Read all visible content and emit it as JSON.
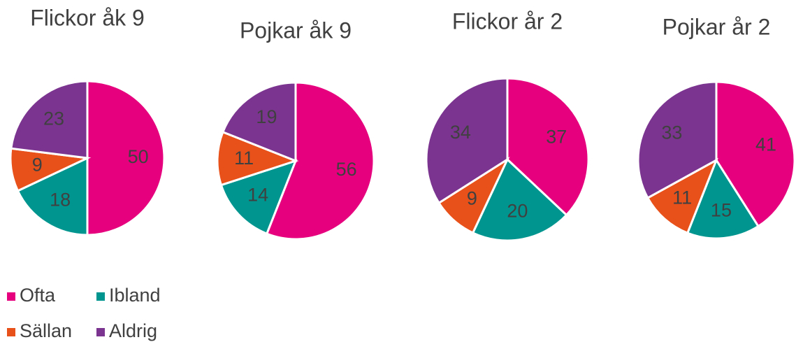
{
  "chart_data": [
    {
      "type": "pie",
      "title": "Flickor åk 9",
      "values": [
        50,
        18,
        9,
        23
      ]
    },
    {
      "type": "pie",
      "title": "Pojkar åk 9",
      "values": [
        56,
        14,
        11,
        19
      ]
    },
    {
      "type": "pie",
      "title": "Flickor år 2",
      "values": [
        37,
        20,
        9,
        34
      ]
    },
    {
      "type": "pie",
      "title": "Pojkar år 2",
      "values": [
        41,
        15,
        11,
        33
      ]
    }
  ],
  "legend": {
    "labels": [
      "Ofta",
      "Ibland",
      "Sällan",
      "Aldrig"
    ],
    "colors": [
      "#e6007e",
      "#00968f",
      "#e8511a",
      "#7b3590"
    ]
  }
}
